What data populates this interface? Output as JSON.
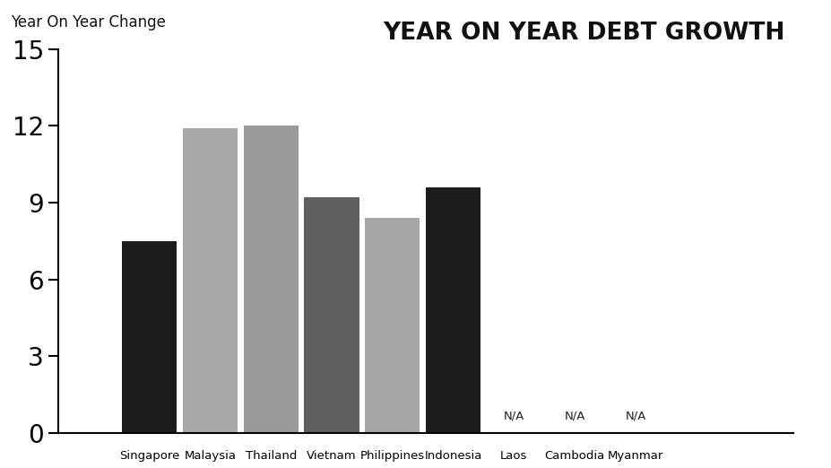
{
  "chart_data": {
    "type": "bar",
    "title": "YEAR ON YEAR DEBT GROWTH",
    "y_label": "Year On Year Change",
    "categories": [
      "Singapore",
      "Malaysia",
      "Thailand",
      "Vietnam",
      "Philippines",
      "Indonesia",
      "Laos",
      "Cambodia",
      "Myanmar"
    ],
    "values": [
      7.5,
      11.9,
      12.0,
      9.2,
      8.4,
      9.6,
      null,
      null,
      null
    ],
    "value_labels": [
      null,
      null,
      null,
      null,
      null,
      null,
      "N/A",
      "N/A",
      "N/A"
    ],
    "colors": [
      "#1c1c1c",
      "#a8a9ab",
      "#98999b",
      "#5f6062",
      "#a6a7a9",
      "#1c1c1c",
      "#1c1c1c",
      "#1c1c1c",
      "#1c1c1c"
    ],
    "ylim": [
      0,
      15
    ],
    "yticks": [
      0,
      3,
      6,
      9,
      12,
      15
    ],
    "grid": false
  }
}
